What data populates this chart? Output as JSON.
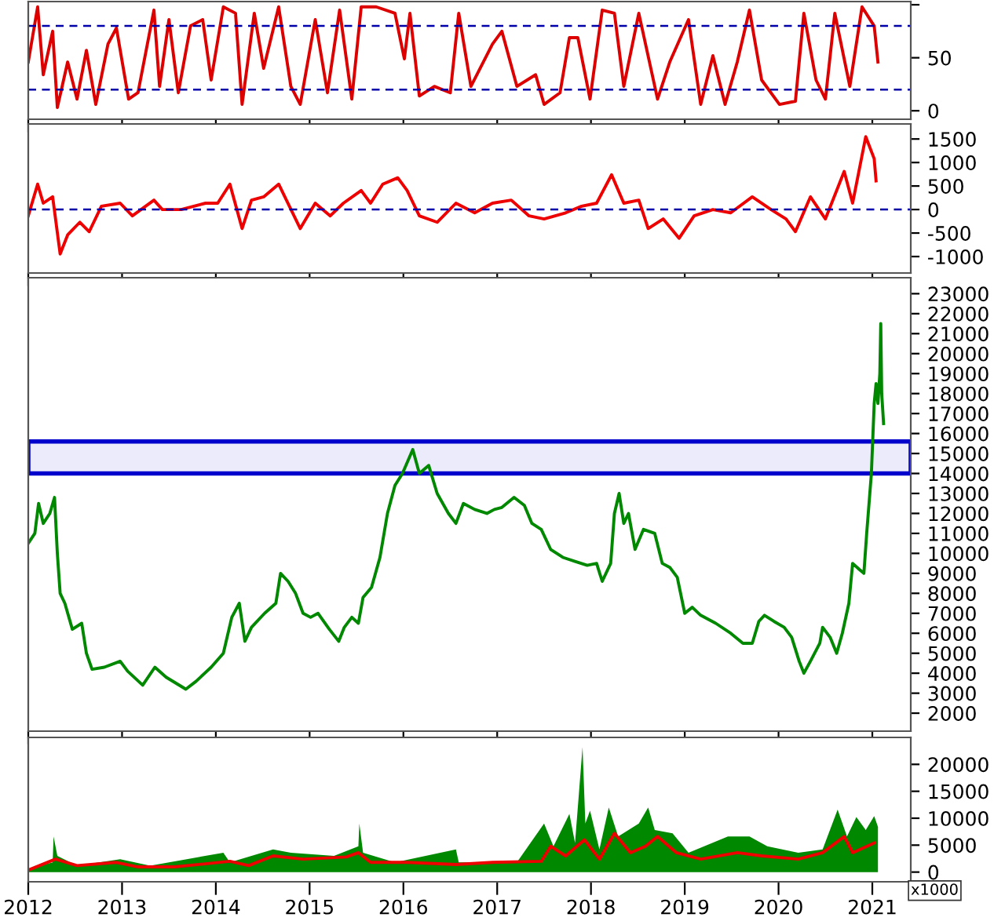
{
  "chart_data": [
    {
      "type": "line",
      "xlim": [
        2012.0,
        2021.41
      ],
      "ylim": [
        -8,
        103
      ],
      "yticks": [
        0,
        50,
        {
          "value": 100,
          "label": null
        }
      ],
      "xticks": [
        2012,
        2013,
        2014,
        2015,
        2016,
        2017,
        2018,
        2019,
        2020,
        2021
      ],
      "tick_labels": "y",
      "grid": false,
      "legend": false,
      "ref_lines": [
        {
          "axis": "y",
          "value": 80,
          "color": "#0000aa",
          "line_style": "dashed"
        },
        {
          "axis": "y",
          "value": 20,
          "color": "#0000aa",
          "line_style": "dashed"
        }
      ],
      "series": [
        {
          "color": "#dd0000",
          "x": [
            2012.0,
            2012.1,
            2012.16,
            2012.26,
            2012.31,
            2012.42,
            2012.52,
            2012.62,
            2012.72,
            2012.85,
            2012.94,
            2013.07,
            2013.17,
            2013.34,
            2013.4,
            2013.5,
            2013.6,
            2013.73,
            2013.86,
            2013.95,
            2014.08,
            2014.21,
            2014.28,
            2014.41,
            2014.51,
            2014.67,
            2014.8,
            2014.9,
            2015.06,
            2015.19,
            2015.32,
            2015.45,
            2015.55,
            2015.71,
            2015.91,
            2016.01,
            2016.07,
            2016.17,
            2016.33,
            2016.5,
            2016.59,
            2016.72,
            2016.95,
            2017.05,
            2017.21,
            2017.41,
            2017.5,
            2017.67,
            2017.77,
            2017.86,
            2017.99,
            2018.12,
            2018.25,
            2018.35,
            2018.51,
            2018.71,
            2018.84,
            2019.04,
            2019.17,
            2019.3,
            2019.43,
            2019.56,
            2019.69,
            2019.82,
            2020.01,
            2020.18,
            2020.27,
            2020.4,
            2020.5,
            2020.6,
            2020.76,
            2020.89,
            2021.02,
            2021.06
          ],
          "values": [
            46,
            98,
            34,
            75,
            3,
            46,
            11,
            57,
            6,
            63,
            78,
            11,
            17,
            95,
            23,
            86,
            17,
            80,
            86,
            29,
            98,
            92,
            6,
            92,
            40,
            98,
            23,
            6,
            86,
            17,
            95,
            11,
            98,
            98,
            92,
            49,
            92,
            14,
            23,
            17,
            92,
            23,
            63,
            75,
            23,
            34,
            6,
            17,
            69,
            69,
            11,
            95,
            92,
            23,
            92,
            11,
            46,
            86,
            6,
            52,
            6,
            46,
            95,
            29,
            6,
            9,
            92,
            29,
            11,
            92,
            23,
            98,
            80,
            46
          ]
        }
      ]
    },
    {
      "type": "line",
      "xlim": [
        2012.0,
        2021.41
      ],
      "ylim": [
        -1350,
        1820
      ],
      "yticks": [
        -1000,
        -500,
        0,
        500,
        1000,
        1500
      ],
      "xticks": [
        2012,
        2013,
        2014,
        2015,
        2016,
        2017,
        2018,
        2019,
        2020,
        2021
      ],
      "tick_labels": "y",
      "grid": false,
      "legend": false,
      "ref_lines": [
        {
          "axis": "y",
          "value": 0,
          "color": "#0000aa",
          "line_style": "dashed"
        }
      ],
      "series": [
        {
          "color": "#ee0000",
          "x": [
            2012.0,
            2012.1,
            2012.16,
            2012.26,
            2012.34,
            2012.42,
            2012.55,
            2012.65,
            2012.78,
            2012.98,
            2013.11,
            2013.34,
            2013.43,
            2013.63,
            2013.89,
            2014.02,
            2014.15,
            2014.28,
            2014.38,
            2014.51,
            2014.67,
            2014.9,
            2015.06,
            2015.22,
            2015.36,
            2015.55,
            2015.65,
            2015.78,
            2015.94,
            2016.04,
            2016.17,
            2016.36,
            2016.56,
            2016.76,
            2016.95,
            2017.15,
            2017.34,
            2017.5,
            2017.73,
            2017.9,
            2018.06,
            2018.22,
            2018.35,
            2018.51,
            2018.61,
            2018.77,
            2018.94,
            2019.1,
            2019.3,
            2019.49,
            2019.72,
            2019.92,
            2020.08,
            2020.18,
            2020.34,
            2020.5,
            2020.7,
            2020.79,
            2020.93,
            2021.02,
            2021.04
          ],
          "values": [
            -135,
            540,
            135,
            270,
            -945,
            -540,
            -270,
            -470,
            70,
            135,
            -135,
            200,
            0,
            0,
            135,
            135,
            540,
            -405,
            200,
            270,
            540,
            -405,
            135,
            -135,
            135,
            405,
            135,
            540,
            675,
            405,
            -135,
            -270,
            135,
            -70,
            135,
            200,
            -135,
            -200,
            -70,
            70,
            135,
            740,
            135,
            200,
            -405,
            -200,
            -610,
            -135,
            0,
            -70,
            270,
            0,
            -200,
            -470,
            270,
            -200,
            810,
            135,
            1550,
            1080,
            610
          ]
        }
      ]
    },
    {
      "type": "line",
      "xlim": [
        2012.0,
        2021.41
      ],
      "ylim": [
        1100,
        23800
      ],
      "yticks": [
        2000,
        3000,
        4000,
        5000,
        6000,
        7000,
        8000,
        9000,
        10000,
        11000,
        12000,
        13000,
        14000,
        15000,
        16000,
        17000,
        18000,
        19000,
        20000,
        21000,
        22000,
        23000
      ],
      "xticks": [
        2012,
        2013,
        2014,
        2015,
        2016,
        2017,
        2018,
        2019,
        2020,
        2021
      ],
      "tick_labels": "y",
      "grid": false,
      "legend": false,
      "bands": [
        {
          "axis": "y",
          "from": 14000,
          "to": 15600,
          "color": "#0000cc"
        }
      ],
      "series": [
        {
          "color": "#008800",
          "x": [
            2012.0,
            2012.07,
            2012.11,
            2012.16,
            2012.23,
            2012.28,
            2012.31,
            2012.34,
            2012.39,
            2012.47,
            2012.57,
            2012.62,
            2012.68,
            2012.81,
            2012.98,
            2013.06,
            2013.22,
            2013.35,
            2013.47,
            2013.68,
            2013.79,
            2013.95,
            2014.08,
            2014.17,
            2014.25,
            2014.31,
            2014.38,
            2014.52,
            2014.64,
            2014.69,
            2014.77,
            2014.85,
            2014.93,
            2015.01,
            2015.09,
            2015.21,
            2015.31,
            2015.37,
            2015.45,
            2015.52,
            2015.57,
            2015.66,
            2015.75,
            2015.83,
            2015.91,
            2015.99,
            2016.1,
            2016.17,
            2016.27,
            2016.36,
            2016.48,
            2016.56,
            2016.64,
            2016.76,
            2016.89,
            2016.97,
            2017.05,
            2017.18,
            2017.29,
            2017.37,
            2017.47,
            2017.57,
            2017.7,
            2017.83,
            2017.96,
            2018.06,
            2018.12,
            2018.21,
            2018.25,
            2018.3,
            2018.35,
            2018.4,
            2018.47,
            2018.56,
            2018.68,
            2018.76,
            2018.84,
            2018.92,
            2019.0,
            2019.08,
            2019.17,
            2019.33,
            2019.49,
            2019.62,
            2019.72,
            2019.79,
            2019.85,
            2019.95,
            2020.06,
            2020.14,
            2020.22,
            2020.27,
            2020.34,
            2020.44,
            2020.47,
            2020.55,
            2020.62,
            2020.68,
            2020.75,
            2020.79,
            2020.86,
            2020.91,
            2020.94,
            2020.99,
            2021.02,
            2021.04,
            2021.06,
            2021.08,
            2021.09,
            2021.1,
            2021.12
          ],
          "values": [
            10500,
            11000,
            12500,
            11500,
            12000,
            12800,
            10000,
            8000,
            7500,
            6200,
            6500,
            5000,
            4200,
            4300,
            4600,
            4100,
            3400,
            4300,
            3800,
            3200,
            3600,
            4300,
            5000,
            6800,
            7500,
            5600,
            6300,
            7000,
            7500,
            9000,
            8600,
            8000,
            7000,
            6800,
            7000,
            6200,
            5600,
            6300,
            6800,
            6500,
            7800,
            8300,
            9800,
            12000,
            13400,
            14000,
            15200,
            14000,
            14400,
            13000,
            12000,
            11500,
            12500,
            12200,
            12000,
            12200,
            12300,
            12800,
            12400,
            11500,
            11200,
            10200,
            9800,
            9600,
            9400,
            9500,
            8600,
            9500,
            12000,
            13000,
            11500,
            12000,
            10200,
            11200,
            11000,
            9500,
            9300,
            8800,
            7000,
            7300,
            6900,
            6500,
            6000,
            5500,
            5500,
            6600,
            6900,
            6600,
            6300,
            5800,
            4600,
            4000,
            4600,
            5500,
            6300,
            5800,
            5000,
            6000,
            7500,
            9500,
            9200,
            9000,
            11000,
            14000,
            17500,
            18500,
            17500,
            19000,
            21500,
            18000,
            16500
          ]
        }
      ]
    },
    {
      "type": "line",
      "xlim": [
        2012.0,
        2021.41
      ],
      "ylim": [
        -1800,
        25000
      ],
      "yticks": [
        0,
        5000,
        10000,
        15000,
        20000
      ],
      "xticks": [
        2012,
        2013,
        2014,
        2015,
        2016,
        2017,
        2018,
        2019,
        2020,
        2021
      ],
      "grid": false,
      "legend": false,
      "annotations": [
        "x1000"
      ],
      "series": [
        {
          "type": "area",
          "color": "#008800",
          "x": [
            2012.0,
            2012.26,
            2012.27,
            2012.31,
            2012.52,
            2012.98,
            2013.3,
            2013.69,
            2014.08,
            2014.15,
            2014.61,
            2014.8,
            2015.26,
            2015.52,
            2015.53,
            2015.57,
            2015.91,
            2016.56,
            2016.59,
            2017.21,
            2017.5,
            2017.6,
            2017.77,
            2017.83,
            2017.91,
            2017.94,
            2017.99,
            2018.09,
            2018.19,
            2018.29,
            2018.51,
            2018.61,
            2018.68,
            2018.87,
            2019.04,
            2019.46,
            2019.69,
            2019.88,
            2020.21,
            2020.47,
            2020.63,
            2020.73,
            2020.83,
            2020.93,
            2021.02,
            2021.06
          ],
          "values": [
            600,
            1800,
            6600,
            3000,
            1200,
            2400,
            1200,
            2400,
            3600,
            1800,
            4200,
            3600,
            3000,
            4800,
            9000,
            3600,
            1800,
            4200,
            1800,
            1800,
            9000,
            4800,
            10800,
            5400,
            23200,
            9000,
            11400,
            4200,
            12000,
            6600,
            9000,
            12000,
            7800,
            7200,
            3600,
            6600,
            6600,
            4800,
            3600,
            4200,
            11600,
            6600,
            10200,
            7800,
            10400,
            8400
          ]
        },
        {
          "type": "line",
          "color": "#ee0000",
          "x": [
            2012.0,
            2012.29,
            2012.52,
            2012.94,
            2013.17,
            2013.56,
            2014.15,
            2014.35,
            2014.61,
            2014.93,
            2015.39,
            2015.52,
            2015.65,
            2016.04,
            2016.56,
            2016.95,
            2017.47,
            2017.57,
            2017.73,
            2017.93,
            2018.09,
            2018.25,
            2018.42,
            2018.58,
            2018.71,
            2018.91,
            2019.17,
            2019.56,
            2019.82,
            2020.21,
            2020.47,
            2020.7,
            2020.79,
            2021.02
          ],
          "values": [
            360,
            2400,
            1200,
            1800,
            960,
            960,
            2000,
            1200,
            3000,
            2400,
            2800,
            3600,
            1800,
            1800,
            1400,
            1800,
            2000,
            4800,
            3000,
            6000,
            2400,
            7200,
            3600,
            4800,
            6600,
            3600,
            2400,
            3600,
            3000,
            2400,
            3600,
            6600,
            3600,
            5400
          ]
        }
      ]
    }
  ]
}
